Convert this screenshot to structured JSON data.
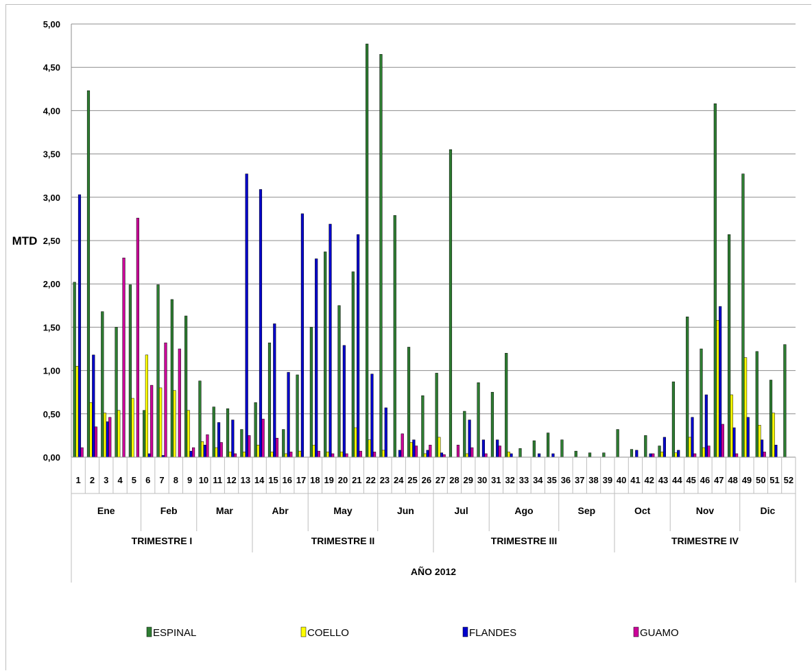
{
  "chart_data": {
    "type": "bar",
    "title": "",
    "ylabel": "MTD",
    "xlabel": "AÑO 2012",
    "ylim": [
      0,
      5
    ],
    "y_ticks": [
      "0,00",
      "0,50",
      "1,00",
      "1,50",
      "2,00",
      "2,50",
      "3,00",
      "3,50",
      "4,00",
      "4,50",
      "5,00"
    ],
    "grid": true,
    "legend_position": "bottom",
    "categories": [
      "1",
      "2",
      "3",
      "4",
      "5",
      "6",
      "7",
      "8",
      "9",
      "10",
      "11",
      "12",
      "13",
      "14",
      "15",
      "16",
      "17",
      "18",
      "19",
      "20",
      "21",
      "22",
      "23",
      "24",
      "25",
      "26",
      "27",
      "28",
      "29",
      "30",
      "31",
      "32",
      "33",
      "34",
      "35",
      "36",
      "37",
      "38",
      "39",
      "40",
      "41",
      "42",
      "43",
      "44",
      "45",
      "46",
      "47",
      "48",
      "49",
      "50",
      "51",
      "52"
    ],
    "months": [
      {
        "label": "Ene",
        "start_week": 1,
        "end_week": 5
      },
      {
        "label": "Feb",
        "start_week": 6,
        "end_week": 9
      },
      {
        "label": "Mar",
        "start_week": 10,
        "end_week": 13
      },
      {
        "label": "Abr",
        "start_week": 14,
        "end_week": 17
      },
      {
        "label": "May",
        "start_week": 18,
        "end_week": 22
      },
      {
        "label": "Jun",
        "start_week": 23,
        "end_week": 26
      },
      {
        "label": "Jul",
        "start_week": 27,
        "end_week": 30
      },
      {
        "label": "Ago",
        "start_week": 31,
        "end_week": 35
      },
      {
        "label": "Sep",
        "start_week": 36,
        "end_week": 39
      },
      {
        "label": "Oct",
        "start_week": 40,
        "end_week": 43
      },
      {
        "label": "Nov",
        "start_week": 44,
        "end_week": 48
      },
      {
        "label": "Dic",
        "start_week": 49,
        "end_week": 52
      }
    ],
    "quarters": [
      {
        "label": "TRIMESTRE I",
        "start_week": 1,
        "end_week": 13
      },
      {
        "label": "TRIMESTRE II",
        "start_week": 14,
        "end_week": 26
      },
      {
        "label": "TRIMESTRE III",
        "start_week": 27,
        "end_week": 39
      },
      {
        "label": "TRIMESTRE IV",
        "start_week": 40,
        "end_week": 52
      }
    ],
    "series": [
      {
        "name": "ESPINAL",
        "color": "#2e7d32",
        "values": [
          2.02,
          4.23,
          1.68,
          1.5,
          1.99,
          0.54,
          1.99,
          1.82,
          1.63,
          0.88,
          0.58,
          0.56,
          0.32,
          0.63,
          1.32,
          0.32,
          0.95,
          1.5,
          2.37,
          1.75,
          2.14,
          4.77,
          4.65,
          2.79,
          1.27,
          0.71,
          0.97,
          3.55,
          0.53,
          0.86,
          0.75,
          1.2,
          0.1,
          0.19,
          0.28,
          0.2,
          0.07,
          0.05,
          0.05,
          0.32,
          0.09,
          0.25,
          0.13,
          0.87,
          1.62,
          1.25,
          4.08,
          2.57,
          3.27,
          1.22,
          0.89,
          1.3
        ]
      },
      {
        "name": "COELLO",
        "color": "#ffff00",
        "values": [
          1.05,
          0.63,
          0.51,
          0.54,
          0.68,
          1.18,
          0.8,
          0.77,
          0.54,
          0.18,
          0.11,
          0.06,
          0.06,
          0.14,
          0.06,
          0.04,
          0.07,
          0.14,
          0.06,
          0.06,
          0.34,
          0.2,
          0.08,
          0.0,
          0.17,
          0.04,
          0.23,
          0.0,
          0.04,
          0.0,
          0.0,
          0.06,
          0.0,
          0.0,
          0.0,
          0.0,
          0.0,
          0.0,
          0.0,
          0.0,
          0.0,
          0.0,
          0.06,
          0.05,
          0.23,
          0.11,
          1.58,
          0.72,
          1.15,
          0.37,
          0.51,
          0.0
        ]
      },
      {
        "name": "FLANDES",
        "color": "#0000cc",
        "values": [
          3.03,
          1.18,
          0.41,
          0.0,
          0.0,
          0.04,
          0.02,
          0.0,
          0.07,
          0.14,
          0.4,
          0.43,
          3.27,
          3.09,
          1.54,
          0.98,
          2.81,
          2.29,
          2.69,
          1.29,
          2.57,
          0.96,
          0.57,
          0.08,
          0.2,
          0.08,
          0.05,
          0.0,
          0.43,
          0.2,
          0.2,
          0.04,
          0.0,
          0.04,
          0.04,
          0.0,
          0.0,
          0.0,
          0.0,
          0.0,
          0.08,
          0.04,
          0.23,
          0.08,
          0.46,
          0.72,
          1.74,
          0.34,
          0.46,
          0.2,
          0.14,
          0.0
        ]
      },
      {
        "name": "GUAMO",
        "color": "#cc0099",
        "values": [
          0.11,
          0.35,
          0.46,
          2.3,
          2.76,
          0.83,
          1.32,
          1.25,
          0.11,
          0.26,
          0.17,
          0.04,
          0.25,
          0.44,
          0.22,
          0.06,
          0.0,
          0.07,
          0.04,
          0.04,
          0.07,
          0.06,
          0.0,
          0.27,
          0.13,
          0.14,
          0.03,
          0.14,
          0.11,
          0.04,
          0.13,
          0.0,
          0.0,
          0.0,
          0.0,
          0.0,
          0.0,
          0.0,
          0.0,
          0.0,
          0.0,
          0.04,
          0.0,
          0.0,
          0.04,
          0.13,
          0.38,
          0.04,
          0.0,
          0.06,
          0.0,
          0.0
        ]
      }
    ]
  }
}
